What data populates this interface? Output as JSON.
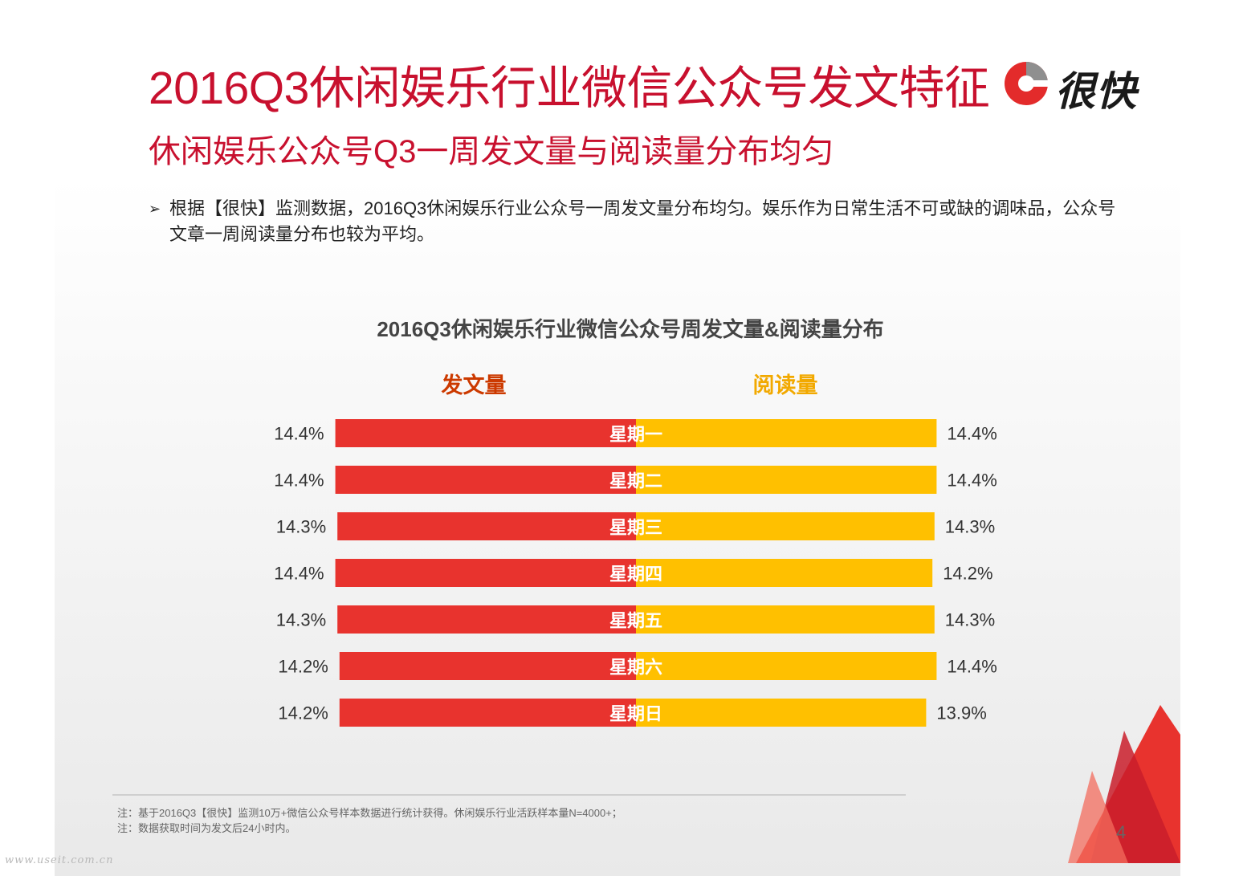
{
  "title": "2016Q3休闲娱乐行业微信公众号发文特征",
  "subtitle": "休闲娱乐公众号Q3一周发文量与阅读量分布均匀",
  "logo": {
    "text": "很快"
  },
  "bullet": {
    "arrow": "➢",
    "text": "根据【很快】监测数据，2016Q3休闲娱乐行业公众号一周发文量分布均匀。娱乐作为日常生活不可或缺的调味品，公众号文章一周阅读量分布也较为平均。"
  },
  "chart_data": {
    "type": "bar",
    "title": "2016Q3休闲娱乐行业微信公众号周发文量&阅读量分布",
    "categories": [
      "星期一",
      "星期二",
      "星期三",
      "星期四",
      "星期五",
      "星期六",
      "星期日"
    ],
    "series": [
      {
        "name": "发文量",
        "values": [
          14.4,
          14.4,
          14.3,
          14.4,
          14.3,
          14.2,
          14.2
        ],
        "labels": [
          "14.4%",
          "14.4%",
          "14.3%",
          "14.4%",
          "14.3%",
          "14.2%",
          "14.2%"
        ],
        "color": "#e8332e"
      },
      {
        "name": "阅读量",
        "values": [
          14.4,
          14.4,
          14.3,
          14.2,
          14.3,
          14.4,
          13.9
        ],
        "labels": [
          "14.4%",
          "14.4%",
          "14.3%",
          "14.2%",
          "14.3%",
          "14.4%",
          "13.9%"
        ],
        "color": "#ffc000"
      }
    ],
    "unit": "%"
  },
  "notes": [
    "注：基于2016Q3【很快】监测10万+微信公众号样本数据进行统计获得。休闲娱乐行业活跃样本量N=4000+；",
    "注：数据获取时间为发文后24小时内。"
  ],
  "page_number": "4",
  "watermark": "www.useit.com.cn"
}
